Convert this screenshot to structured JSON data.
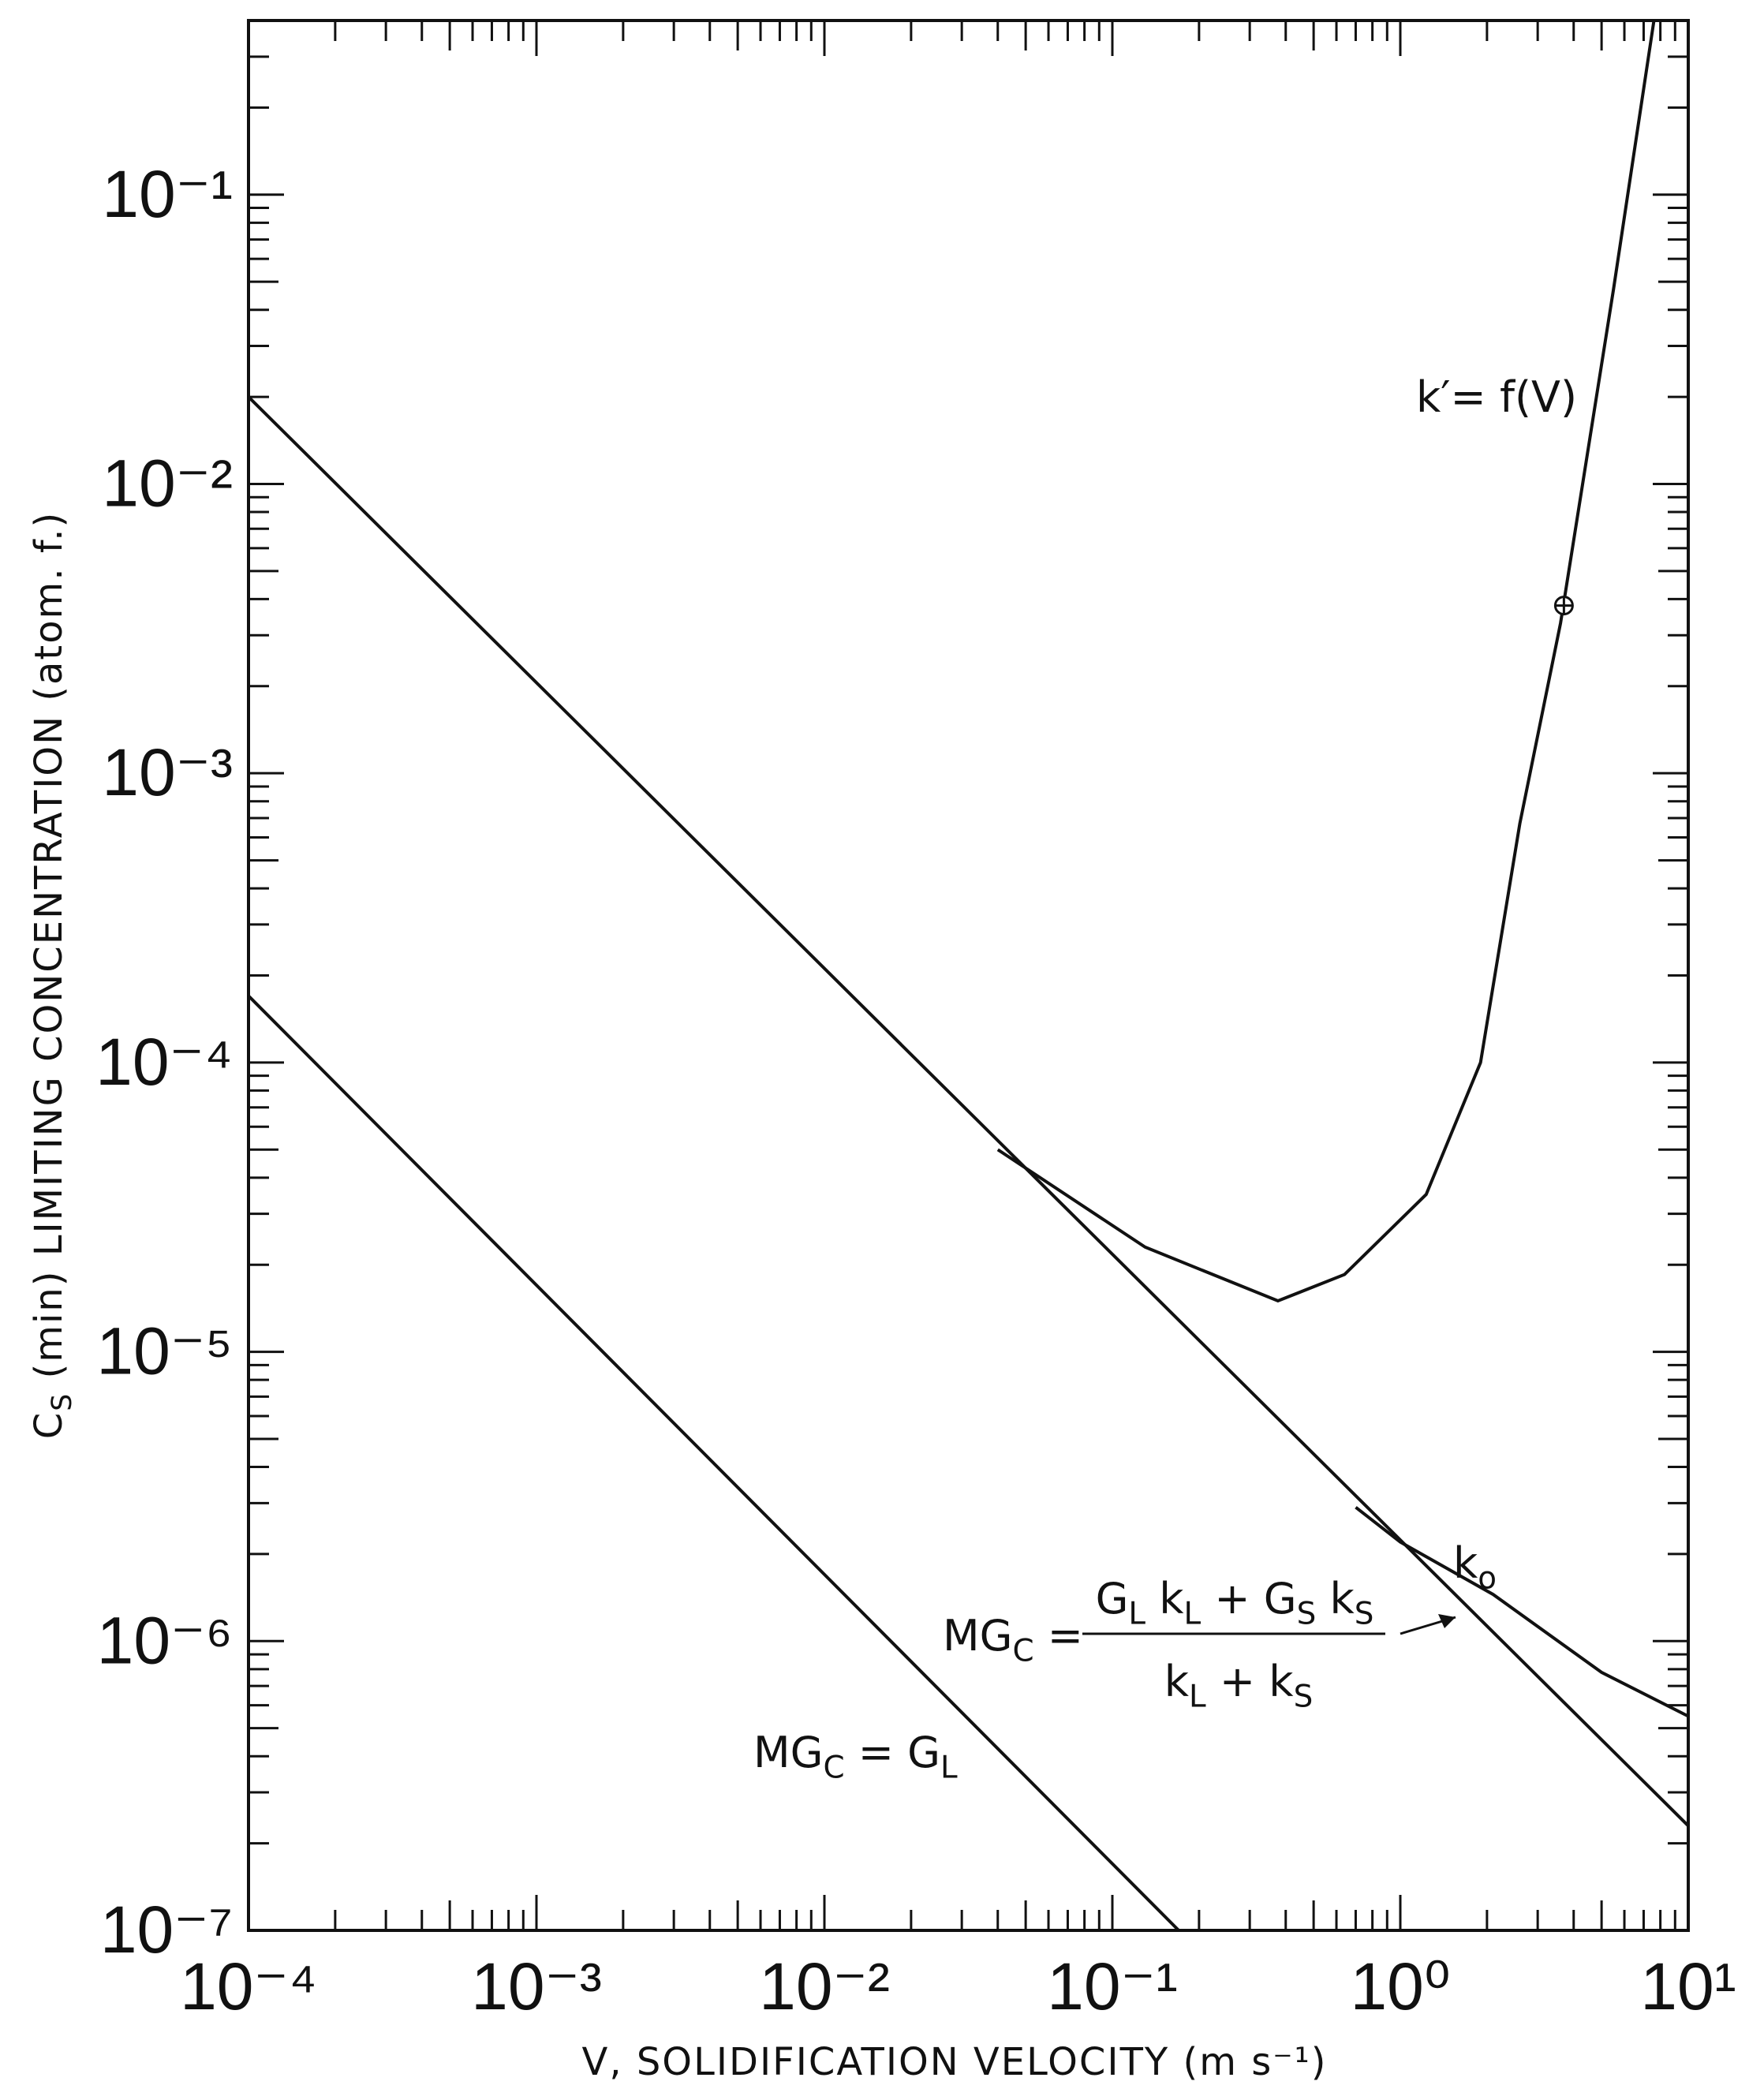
{
  "chart_data": {
    "type": "line",
    "xlabel": "V, SOLIDIFICATION VELOCITY (m s⁻¹)",
    "ylabel": [
      "C",
      "S",
      " (min) LIMITING CONCENTRATION (atom. f.)"
    ],
    "log_x": true,
    "log_y": true,
    "minor_ticks": true,
    "xlim": [
      0.0001,
      10
    ],
    "ylim": [
      1e-07,
      0.4
    ],
    "xticks": [
      {
        "value": 0.0001,
        "label": "10⁻⁴"
      },
      {
        "value": 0.001,
        "label": "10⁻³"
      },
      {
        "value": 0.01,
        "label": "10⁻²"
      },
      {
        "value": 0.1,
        "label": "10⁻¹"
      },
      {
        "value": 1,
        "label": "10⁰"
      },
      {
        "value": 10,
        "label": "10¹"
      }
    ],
    "yticks": [
      {
        "value": 1e-07,
        "label": "10⁻⁷"
      },
      {
        "value": 1e-06,
        "label": "10⁻⁶"
      },
      {
        "value": 1e-05,
        "label": "10⁻⁵"
      },
      {
        "value": 0.0001,
        "label": "10⁻⁴"
      },
      {
        "value": 0.001,
        "label": "10⁻³"
      },
      {
        "value": 0.01,
        "label": "10⁻²"
      },
      {
        "value": 0.1,
        "label": "10⁻¹"
      }
    ],
    "series": [
      {
        "color": "#111111",
        "x": [
          0.0001,
          10
        ],
        "values": [
          0.02,
          2.3e-07
        ]
      },
      {
        "color": "#111111",
        "x": [
          0.0001,
          0.17
        ],
        "values": [
          0.00017,
          1e-07
        ]
      },
      {
        "color": "#111111",
        "x": [
          0.7,
          1,
          2.1,
          5,
          10
        ],
        "values": [
          2.9e-06,
          2.2e-06,
          1.45e-06,
          7.8e-07,
          5.5e-07
        ]
      },
      {
        "color": "#111111",
        "x": [
          0.04,
          0.13,
          0.376,
          0.64,
          1.23,
          1.9,
          2.6,
          3.6,
          5.5,
          7.6
        ],
        "values": [
          5e-05,
          2.3e-05,
          1.5e-05,
          1.85e-05,
          3.5e-05,
          0.0001,
          0.00067,
          0.0033,
          0.047,
          0.4
        ]
      }
    ],
    "marker": {
      "x": 3.7,
      "y": 0.0038
    },
    "annotations": {
      "kprime": "k′= f(V)",
      "k0": [
        "k",
        "o"
      ],
      "mgc_gl": [
        "MG",
        "C",
        " = G",
        "L"
      ],
      "mgc_prefix": [
        "MG",
        "C",
        " ="
      ],
      "numerator": [
        "G",
        "L",
        " k",
        "L",
        " + G",
        "S",
        " k",
        "S"
      ],
      "denominator": [
        "k",
        "L",
        " + k",
        "S"
      ]
    }
  }
}
